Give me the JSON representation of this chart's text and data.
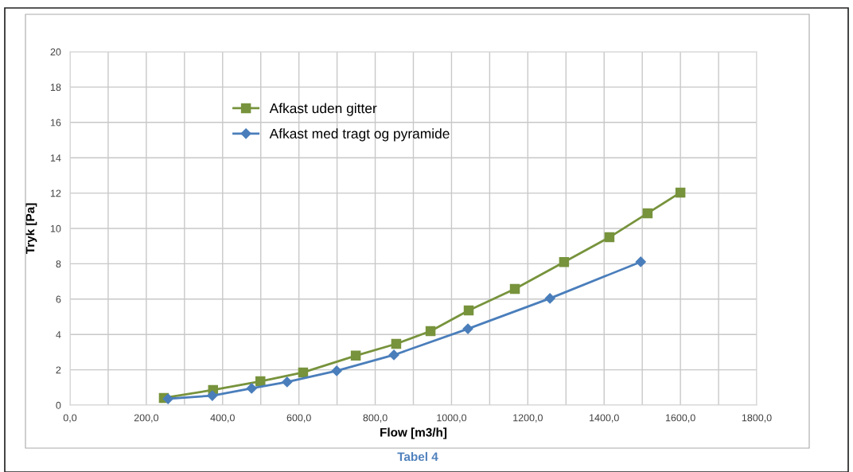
{
  "chart_data": {
    "type": "line",
    "xlabel": "Flow [m3/h]",
    "ylabel": "Tryk [Pa]",
    "series": [
      {
        "name": "Afkast uden gitter",
        "color": "#77933c",
        "marker": "square",
        "x": [
          246,
          375,
          499,
          611,
          749,
          855,
          945,
          1045,
          1166,
          1295,
          1414,
          1514,
          1600
        ],
        "values": [
          0.41,
          0.86,
          1.35,
          1.85,
          2.8,
          3.47,
          4.19,
          5.36,
          6.58,
          8.1,
          9.5,
          10.86,
          12.03
        ]
      },
      {
        "name": "Afkast med tragt og pyramide",
        "color": "#4a7ebb",
        "marker": "diamond",
        "x": [
          257,
          373,
          476,
          569,
          699,
          849,
          1043,
          1258,
          1496
        ],
        "values": [
          0.36,
          0.54,
          0.95,
          1.31,
          1.94,
          2.84,
          4.32,
          6.04,
          8.11
        ]
      }
    ],
    "xlim": [
      0,
      1800
    ],
    "xticks": [
      {
        "value": 0,
        "label": "0,0"
      },
      {
        "value": 100,
        "label": null
      },
      {
        "value": 200,
        "label": "200,0"
      },
      {
        "value": 300,
        "label": null
      },
      {
        "value": 400,
        "label": "400,0"
      },
      {
        "value": 500,
        "label": null
      },
      {
        "value": 600,
        "label": "600,0"
      },
      {
        "value": 700,
        "label": null
      },
      {
        "value": 800,
        "label": "800,0"
      },
      {
        "value": 900,
        "label": null
      },
      {
        "value": 1000,
        "label": "1000,0"
      },
      {
        "value": 1100,
        "label": null
      },
      {
        "value": 1200,
        "label": "1200,0"
      },
      {
        "value": 1300,
        "label": null
      },
      {
        "value": 1400,
        "label": "1400,0"
      },
      {
        "value": 1500,
        "label": null
      },
      {
        "value": 1600,
        "label": "1600,0"
      },
      {
        "value": 1700,
        "label": null
      },
      {
        "value": 1800,
        "label": "1800,0"
      }
    ],
    "ylim": [
      0,
      20
    ],
    "yticks": [
      0,
      2,
      4,
      6,
      8,
      10,
      12,
      14,
      16,
      18,
      20
    ],
    "grid": true,
    "legend": "top left",
    "line_style": "solid",
    "annotations": [
      "Tabel 4"
    ]
  }
}
